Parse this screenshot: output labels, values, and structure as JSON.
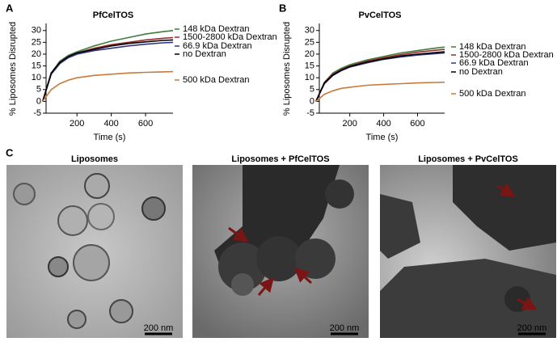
{
  "panel_labels": [
    "A",
    "B",
    "C"
  ],
  "chart_data": [
    {
      "type": "line",
      "title": "PfCelTOS",
      "x_label": "Time (s)",
      "y_label": "% Liposomes Disrupted",
      "x": [
        0,
        50,
        100,
        150,
        200,
        300,
        400,
        500,
        600,
        700,
        760
      ],
      "xlim": [
        20,
        760
      ],
      "xticks": [
        200,
        400,
        600
      ],
      "ylim": [
        -5,
        33
      ],
      "yticks": [
        -5,
        0,
        5,
        10,
        15,
        20,
        25,
        30
      ],
      "series": [
        {
          "name": "148 kDa Dextran",
          "color": "#3d7d3d",
          "values": [
            0,
            12,
            17,
            19.5,
            21,
            23.5,
            25.5,
            27,
            28.5,
            29.5,
            30
          ]
        },
        {
          "name": "1500-2800 kDa Dextran",
          "color": "#9a2a2a",
          "values": [
            0,
            12,
            16.5,
            19,
            20.5,
            22.5,
            24,
            25,
            26,
            26.7,
            27
          ]
        },
        {
          "name": "66.9 kDa Dextran",
          "color": "#33337f",
          "values": [
            0,
            11.5,
            16,
            18.5,
            20,
            21.5,
            22.5,
            23.5,
            24.2,
            24.8,
            25
          ]
        },
        {
          "name": "no Dextran",
          "color": "#000000",
          "values": [
            0,
            12,
            16.5,
            19,
            20.5,
            22,
            23.5,
            24.5,
            25.2,
            25.8,
            26
          ]
        },
        {
          "name": "500 kDa Dextran",
          "color": "#c87a3c",
          "values": [
            0,
            5,
            7.5,
            9,
            10,
            11,
            11.5,
            12,
            12.3,
            12.5,
            12.6
          ]
        }
      ]
    },
    {
      "type": "line",
      "title": "PvCelTOS",
      "x_label": "Time (s)",
      "y_label": "% Liposomes Disrupted",
      "x": [
        0,
        50,
        100,
        150,
        200,
        300,
        400,
        500,
        600,
        700,
        760
      ],
      "xlim": [
        20,
        760
      ],
      "xticks": [
        200,
        400,
        600
      ],
      "ylim": [
        -5,
        33
      ],
      "yticks": [
        -5,
        0,
        5,
        10,
        15,
        20,
        25,
        30
      ],
      "series": [
        {
          "name": "148 kDa Dextran",
          "color": "#3d7d3d",
          "values": [
            0,
            8,
            12,
            14,
            15.5,
            17.5,
            19,
            20.5,
            21.5,
            22.5,
            23
          ]
        },
        {
          "name": "1500-2800 kDa Dextran",
          "color": "#9a2a2a",
          "values": [
            0,
            8,
            11.5,
            13.5,
            15,
            17,
            18.5,
            19.8,
            20.8,
            21.6,
            22
          ]
        },
        {
          "name": "66.9 kDa Dextran",
          "color": "#33337f",
          "values": [
            0,
            7.5,
            11,
            13,
            14.5,
            16.3,
            17.8,
            18.8,
            19.6,
            20.2,
            20.5
          ]
        },
        {
          "name": "no Dextran",
          "color": "#000000",
          "values": [
            0,
            7.8,
            11.2,
            13.2,
            14.8,
            16.6,
            18,
            19.2,
            20,
            20.6,
            21
          ]
        },
        {
          "name": "500 kDa Dextran",
          "color": "#c87a3c",
          "values": [
            0,
            3,
            4.5,
            5.5,
            6,
            6.8,
            7.2,
            7.5,
            7.8,
            8,
            8.1
          ]
        }
      ]
    }
  ],
  "images": [
    {
      "title": "Liposomes",
      "scale_bar": "200 nm"
    },
    {
      "title": "Liposomes + PfCelTOS",
      "scale_bar": "200 nm"
    },
    {
      "title": "Liposomes + PvCelTOS",
      "scale_bar": "200 nm"
    }
  ]
}
